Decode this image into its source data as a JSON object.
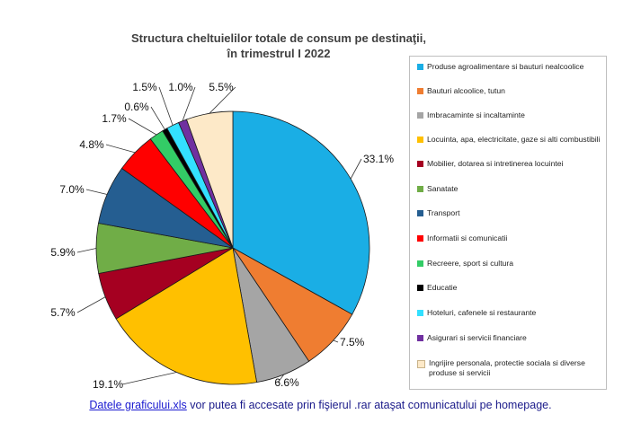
{
  "chart_data": {
    "type": "pie",
    "title_lines": [
      "Structura cheltuielilor totale de consum pe destinaţii,",
      "în trimestrul I 2022"
    ],
    "slices": [
      {
        "label": "Produse agroalimentare si bauturi nealcoolice",
        "value": 33.1,
        "value_label": "33.1%",
        "color": "#1aaee5"
      },
      {
        "label": "Bauturi alcoolice, tutun",
        "value": 7.5,
        "value_label": "7.5%",
        "color": "#ef7d31"
      },
      {
        "label": "Imbracaminte si incaltaminte",
        "value": 6.6,
        "value_label": "6.6%",
        "color": "#a5a5a5"
      },
      {
        "label": "Locuinta, apa, electricitate, gaze si alti combustibili",
        "value": 19.1,
        "value_label": "19.1%",
        "color": "#ffc000"
      },
      {
        "label": "Mobilier, dotarea si intretinerea locuintei",
        "value": 5.7,
        "value_label": "5.7%",
        "color": "#a50021"
      },
      {
        "label": "Sanatate",
        "value": 5.9,
        "value_label": "5.9%",
        "color": "#70ad47"
      },
      {
        "label": "Transport",
        "value": 7.0,
        "value_label": "7.0%",
        "color": "#255e91"
      },
      {
        "label": "Informatii si comunicatii",
        "value": 4.8,
        "value_label": "4.8%",
        "color": "#ff0000"
      },
      {
        "label": "Recreere, sport si cultura",
        "value": 1.7,
        "value_label": "1.7%",
        "color": "#33cc66"
      },
      {
        "label": "Educatie",
        "value": 0.6,
        "value_label": "0.6%",
        "color": "#000000"
      },
      {
        "label": "Hoteluri, cafenele si restaurante",
        "value": 1.5,
        "value_label": "1.5%",
        "color": "#33e0ff"
      },
      {
        "label": "Asigurari si servicii financiare",
        "value": 1.0,
        "value_label": "1.0%",
        "color": "#7030a0"
      },
      {
        "label": "Ingrijire personala, protectie sociala si diverse produse si servicii",
        "value": 5.5,
        "value_label": "5.5%",
        "color": "#fde9c8"
      }
    ],
    "legend_position": "right"
  },
  "footnote": {
    "link_text": "Datele graficului.xls",
    "text": " vor putea fi accesate prin fişierul .rar  ataşat comunicatului pe homepage."
  }
}
